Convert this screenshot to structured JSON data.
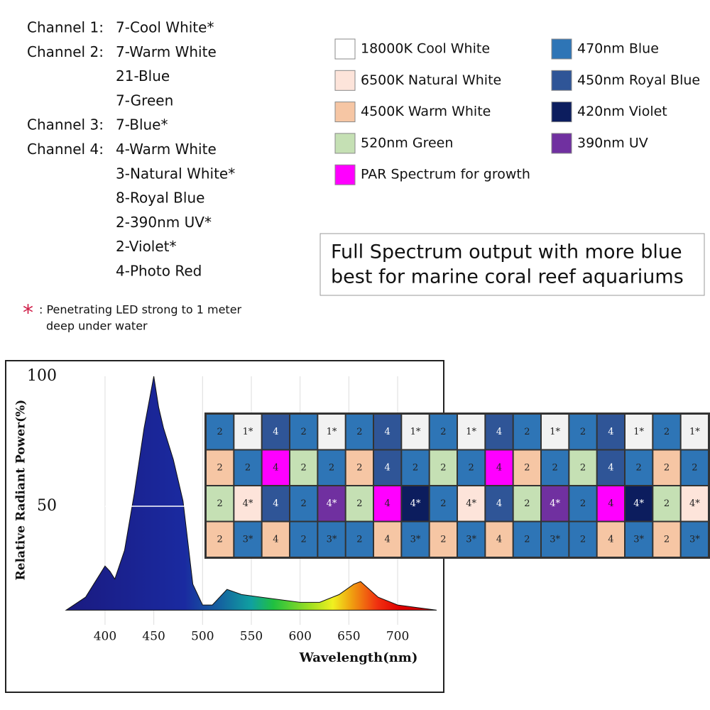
{
  "channels": [
    {
      "name": "Channel 1:",
      "items": [
        "7-Cool White*"
      ]
    },
    {
      "name": "Channel 2:",
      "items": [
        "7-Warm White",
        "21-Blue",
        "7-Green"
      ]
    },
    {
      "name": "Channel 3:",
      "items": [
        "7-Blue*"
      ]
    },
    {
      "name": "Channel 4:",
      "items": [
        "4-Warm White",
        "3-Natural White*",
        "8-Royal Blue",
        "2-390nm UV*",
        "2-Violet*",
        "4-Photo Red"
      ]
    }
  ],
  "legend": [
    {
      "label": "18000K Cool White",
      "color": "#ffffff"
    },
    {
      "label": "6500K Natural White",
      "color": "#fde4da"
    },
    {
      "label": "4500K Warm White",
      "color": "#f6c6a4"
    },
    {
      "label": "520nm Green",
      "color": "#c5e0b4"
    },
    {
      "label": "PAR Spectrum for growth",
      "color": "#ff00ff"
    },
    {
      "label": "470nm Blue",
      "color": "#2e75b6"
    },
    {
      "label": "450nm Royal Blue",
      "color": "#2f5597"
    },
    {
      "label": "420nm Violet",
      "color": "#0c1d5e"
    },
    {
      "label": "390nm UV",
      "color": "#7030a0"
    }
  ],
  "banner": [
    "Full Spectrum output with more blue",
    "best for marine coral reef aquariums"
  ],
  "note": {
    "mark": "*",
    "lines": [
      ": Penetrating LED strong to 1 meter",
      "deep under water"
    ]
  },
  "chart_data": {
    "type": "area",
    "ylabel": "Relative Radiant Power(%)",
    "xlabel": "Wavelength(nm)",
    "x": [
      360,
      380,
      395,
      400,
      405,
      410,
      420,
      430,
      440,
      450,
      455,
      460,
      470,
      480,
      490,
      500,
      510,
      525,
      540,
      560,
      580,
      600,
      620,
      640,
      655,
      662,
      680,
      700,
      720,
      740
    ],
    "values": [
      10,
      15,
      24,
      27,
      25,
      22,
      33,
      55,
      80,
      100,
      88,
      80,
      68,
      52,
      20,
      12,
      12,
      18,
      16,
      15,
      14,
      13,
      13,
      16,
      20,
      21,
      15,
      12,
      11,
      10
    ],
    "xlim": [
      360,
      740
    ],
    "ylim": [
      0,
      100
    ],
    "xticks": [
      400,
      450,
      500,
      550,
      600,
      650,
      700
    ],
    "yticks": [
      50,
      100
    ],
    "grid": true
  },
  "led_grid": {
    "rows": [
      [
        {
          "t": "2",
          "c": "#2e75b6"
        },
        {
          "t": "1*",
          "c": "#f2f2f2"
        },
        {
          "t": "4",
          "c": "#2f5597"
        },
        {
          "t": "2",
          "c": "#2e75b6"
        },
        {
          "t": "1*",
          "c": "#f2f2f2"
        },
        {
          "t": "2",
          "c": "#2e75b6"
        },
        {
          "t": "4",
          "c": "#2f5597"
        },
        {
          "t": "1*",
          "c": "#f2f2f2"
        },
        {
          "t": "2",
          "c": "#2e75b6"
        },
        {
          "t": "1*",
          "c": "#f2f2f2"
        },
        {
          "t": "4",
          "c": "#2f5597"
        },
        {
          "t": "2",
          "c": "#2e75b6"
        },
        {
          "t": "1*",
          "c": "#f2f2f2"
        },
        {
          "t": "2",
          "c": "#2e75b6"
        },
        {
          "t": "4",
          "c": "#2f5597"
        },
        {
          "t": "1*",
          "c": "#f2f2f2"
        },
        {
          "t": "2",
          "c": "#2e75b6"
        },
        {
          "t": "1*",
          "c": "#f2f2f2"
        }
      ],
      [
        {
          "t": "2",
          "c": "#f6c6a4"
        },
        {
          "t": "2",
          "c": "#2e75b6"
        },
        {
          "t": "4",
          "c": "#ff00ff"
        },
        {
          "t": "2",
          "c": "#c5e0b4"
        },
        {
          "t": "2",
          "c": "#2e75b6"
        },
        {
          "t": "2",
          "c": "#f6c6a4"
        },
        {
          "t": "4",
          "c": "#2f5597"
        },
        {
          "t": "2",
          "c": "#2e75b6"
        },
        {
          "t": "2",
          "c": "#c5e0b4"
        },
        {
          "t": "2",
          "c": "#2e75b6"
        },
        {
          "t": "4",
          "c": "#ff00ff"
        },
        {
          "t": "2",
          "c": "#f6c6a4"
        },
        {
          "t": "2",
          "c": "#2e75b6"
        },
        {
          "t": "2",
          "c": "#c5e0b4"
        },
        {
          "t": "4",
          "c": "#2f5597"
        },
        {
          "t": "2",
          "c": "#2e75b6"
        },
        {
          "t": "2",
          "c": "#f6c6a4"
        },
        {
          "t": "2",
          "c": "#2e75b6"
        }
      ],
      [
        {
          "t": "2",
          "c": "#c5e0b4"
        },
        {
          "t": "4*",
          "c": "#fde4da"
        },
        {
          "t": "4",
          "c": "#2f5597"
        },
        {
          "t": "2",
          "c": "#2e75b6"
        },
        {
          "t": "4*",
          "c": "#7030a0"
        },
        {
          "t": "2",
          "c": "#c5e0b4"
        },
        {
          "t": "4",
          "c": "#ff00ff"
        },
        {
          "t": "4*",
          "c": "#0c1d5e"
        },
        {
          "t": "2",
          "c": "#2e75b6"
        },
        {
          "t": "4*",
          "c": "#fde4da"
        },
        {
          "t": "4",
          "c": "#2f5597"
        },
        {
          "t": "2",
          "c": "#c5e0b4"
        },
        {
          "t": "4*",
          "c": "#7030a0"
        },
        {
          "t": "2",
          "c": "#2e75b6"
        },
        {
          "t": "4",
          "c": "#ff00ff"
        },
        {
          "t": "4*",
          "c": "#0c1d5e"
        },
        {
          "t": "2",
          "c": "#c5e0b4"
        },
        {
          "t": "4*",
          "c": "#fde4da"
        }
      ],
      [
        {
          "t": "2",
          "c": "#f6c6a4"
        },
        {
          "t": "3*",
          "c": "#2e75b6"
        },
        {
          "t": "4",
          "c": "#f6c6a4"
        },
        {
          "t": "2",
          "c": "#2e75b6"
        },
        {
          "t": "3*",
          "c": "#2e75b6"
        },
        {
          "t": "2",
          "c": "#2e75b6"
        },
        {
          "t": "4",
          "c": "#f6c6a4"
        },
        {
          "t": "3*",
          "c": "#2e75b6"
        },
        {
          "t": "2",
          "c": "#f6c6a4"
        },
        {
          "t": "3*",
          "c": "#2e75b6"
        },
        {
          "t": "4",
          "c": "#f6c6a4"
        },
        {
          "t": "2",
          "c": "#2e75b6"
        },
        {
          "t": "3*",
          "c": "#2e75b6"
        },
        {
          "t": "2",
          "c": "#2e75b6"
        },
        {
          "t": "4",
          "c": "#f6c6a4"
        },
        {
          "t": "3*",
          "c": "#2e75b6"
        },
        {
          "t": "2",
          "c": "#f6c6a4"
        },
        {
          "t": "3*",
          "c": "#2e75b6"
        }
      ]
    ]
  }
}
